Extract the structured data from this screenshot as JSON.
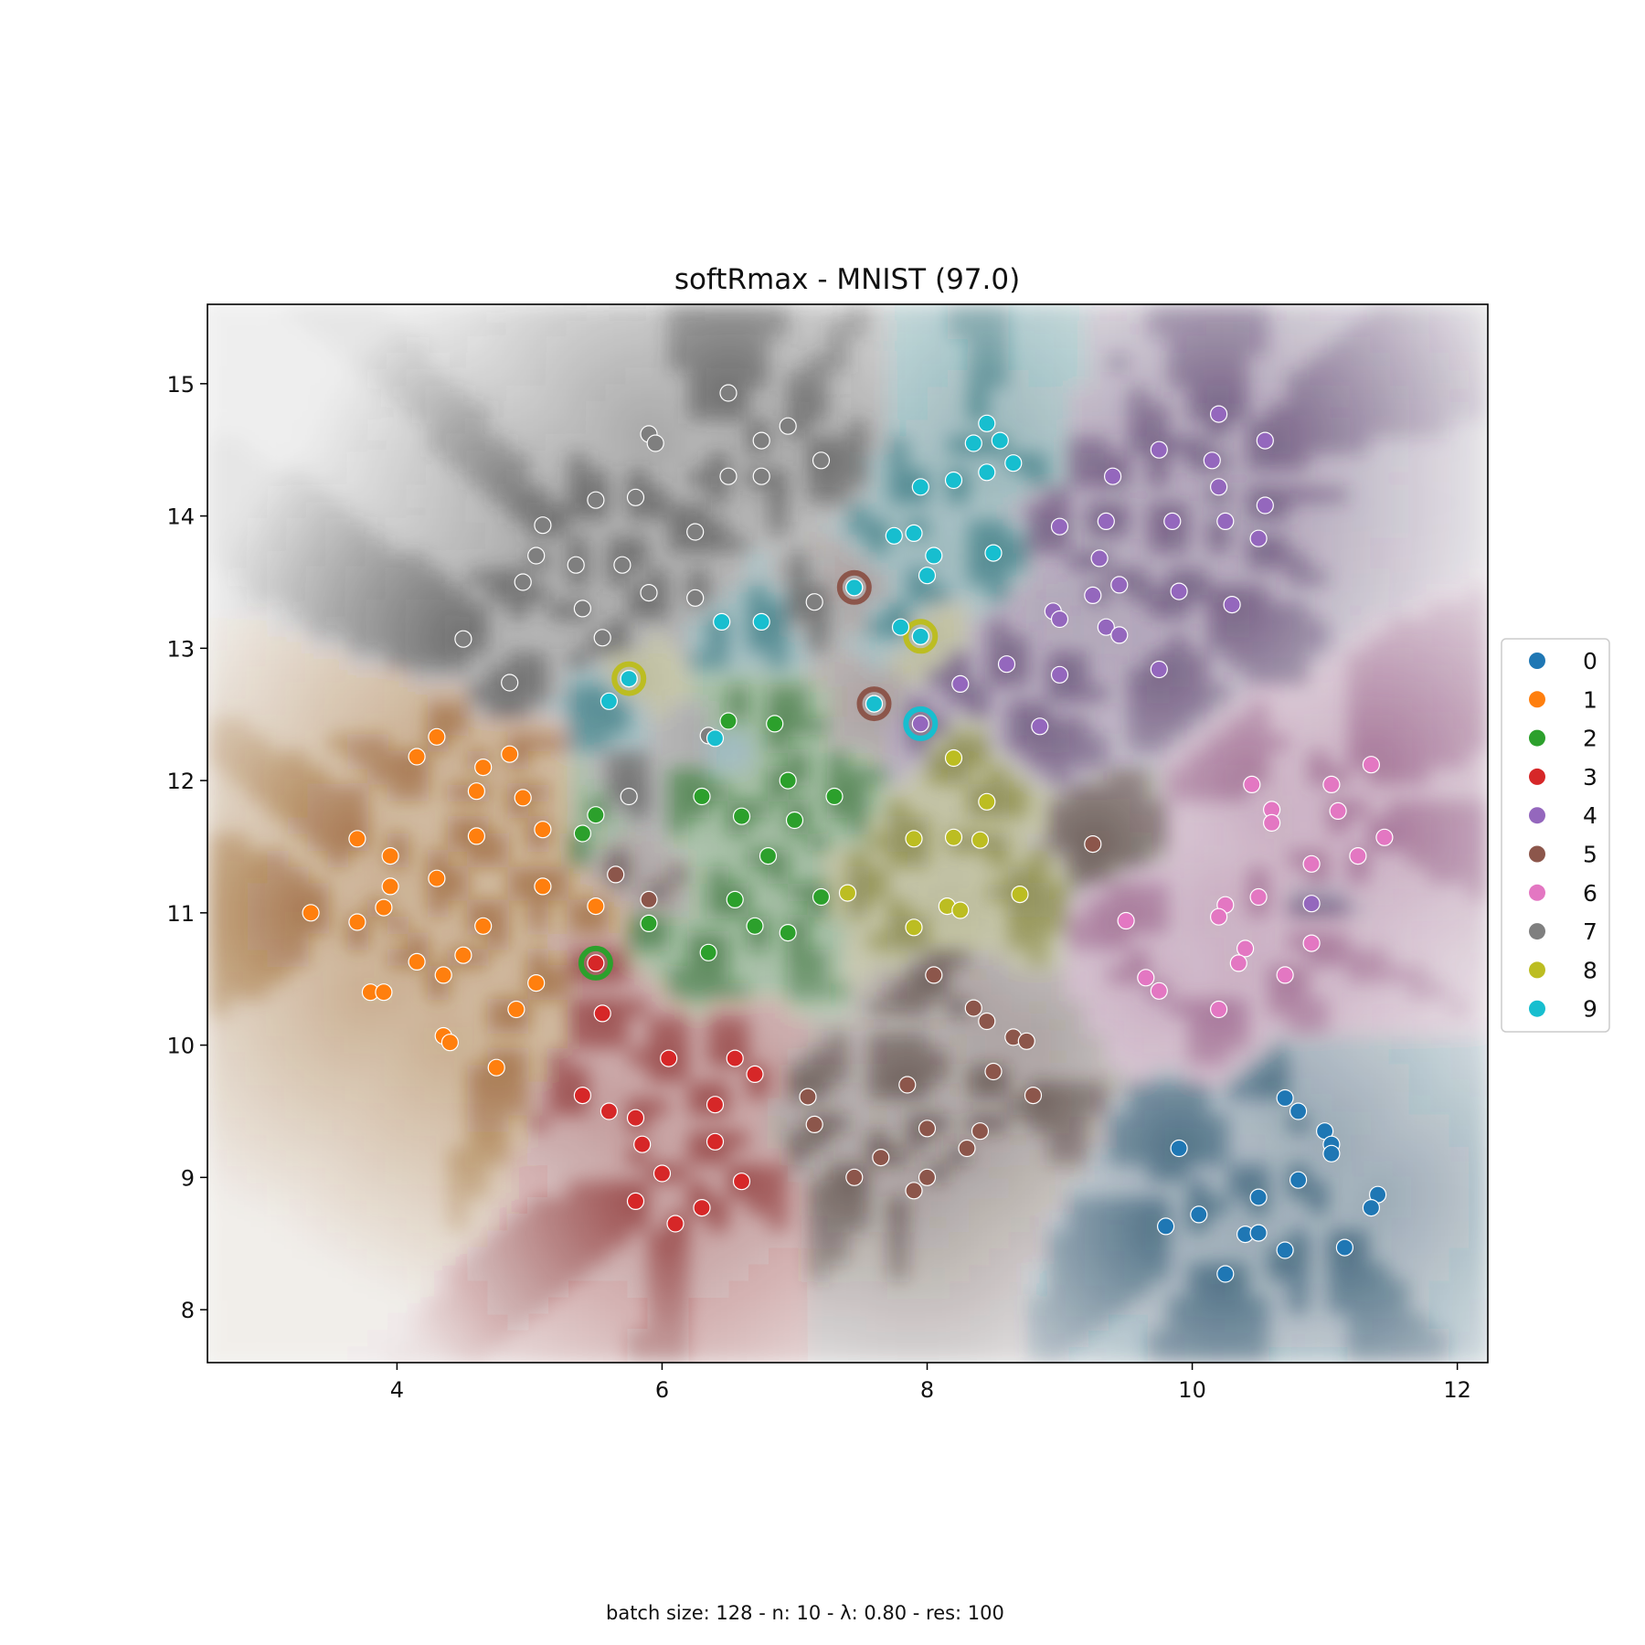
{
  "chart_data": {
    "type": "scatter",
    "title": "softRmax - MNIST (97.0)",
    "caption": "batch size: 128 - n: 10 - λ: 0.80 - res: 100",
    "xlim": [
      2.57,
      12.23
    ],
    "ylim": [
      7.6,
      15.6
    ],
    "xticks": [
      4,
      6,
      8,
      10,
      12
    ],
    "yticks": [
      8,
      9,
      10,
      11,
      12,
      13,
      14,
      15
    ],
    "grid": false,
    "legend_position": "right",
    "background": "class-probability heatmap tinted by predicted class",
    "classes": [
      {
        "label": "0",
        "color": "#1f77b4",
        "shade": "#15405c"
      },
      {
        "label": "1",
        "color": "#ff7f0e",
        "shade": "#8a4a0c"
      },
      {
        "label": "2",
        "color": "#2ca02c",
        "shade": "#1b5e1b"
      },
      {
        "label": "3",
        "color": "#d62728",
        "shade": "#7a1414"
      },
      {
        "label": "4",
        "color": "#9467bd",
        "shade": "#4a2e5e"
      },
      {
        "label": "5",
        "color": "#8c564b",
        "shade": "#3f2a25"
      },
      {
        "label": "6",
        "color": "#e377c2",
        "shade": "#8a4a78"
      },
      {
        "label": "7",
        "color": "#7f7f7f",
        "shade": "#3c3c3c"
      },
      {
        "label": "8",
        "color": "#bcbd22",
        "shade": "#6a6a18"
      },
      {
        "label": "9",
        "color": "#17becf",
        "shade": "#12606a"
      }
    ],
    "series": [
      {
        "name": "0",
        "points": [
          [
            10.7,
            9.6
          ],
          [
            10.8,
            9.5
          ],
          [
            11.0,
            9.35
          ],
          [
            11.05,
            9.25
          ],
          [
            11.05,
            9.18
          ],
          [
            9.9,
            9.22
          ],
          [
            10.5,
            8.85
          ],
          [
            10.8,
            8.98
          ],
          [
            11.4,
            8.87
          ],
          [
            11.35,
            8.77
          ],
          [
            9.8,
            8.63
          ],
          [
            10.05,
            8.72
          ],
          [
            10.4,
            8.57
          ],
          [
            10.5,
            8.58
          ],
          [
            10.7,
            8.45
          ],
          [
            11.15,
            8.47
          ],
          [
            10.25,
            8.27
          ]
        ]
      },
      {
        "name": "1",
        "points": [
          [
            4.15,
            12.18
          ],
          [
            4.3,
            12.33
          ],
          [
            4.65,
            12.1
          ],
          [
            4.85,
            12.2
          ],
          [
            4.6,
            11.92
          ],
          [
            4.95,
            11.87
          ],
          [
            3.7,
            11.56
          ],
          [
            3.95,
            11.43
          ],
          [
            4.6,
            11.58
          ],
          [
            5.1,
            11.63
          ],
          [
            4.3,
            11.26
          ],
          [
            3.95,
            11.2
          ],
          [
            5.1,
            11.2
          ],
          [
            3.35,
            11.0
          ],
          [
            3.9,
            11.04
          ],
          [
            3.7,
            10.93
          ],
          [
            4.65,
            10.9
          ],
          [
            5.5,
            11.05
          ],
          [
            4.15,
            10.63
          ],
          [
            4.5,
            10.68
          ],
          [
            4.35,
            10.53
          ],
          [
            5.05,
            10.47
          ],
          [
            3.8,
            10.4
          ],
          [
            3.9,
            10.4
          ],
          [
            4.9,
            10.27
          ],
          [
            4.35,
            10.07
          ],
          [
            4.4,
            10.02
          ],
          [
            4.75,
            9.83
          ]
        ]
      },
      {
        "name": "2",
        "points": [
          [
            6.5,
            12.45
          ],
          [
            6.85,
            12.43
          ],
          [
            6.95,
            12.0
          ],
          [
            6.3,
            11.88
          ],
          [
            7.3,
            11.88
          ],
          [
            5.5,
            11.74
          ],
          [
            6.6,
            11.73
          ],
          [
            7.0,
            11.7
          ],
          [
            5.4,
            11.6
          ],
          [
            6.8,
            11.43
          ],
          [
            6.55,
            11.1
          ],
          [
            6.7,
            10.9
          ],
          [
            6.95,
            10.85
          ],
          [
            7.2,
            11.12
          ],
          [
            5.9,
            10.92
          ],
          [
            6.35,
            10.7
          ]
        ]
      },
      {
        "name": "3",
        "points": [
          [
            5.5,
            10.62
          ],
          [
            5.55,
            10.24
          ],
          [
            6.05,
            9.9
          ],
          [
            6.55,
            9.9
          ],
          [
            6.7,
            9.78
          ],
          [
            5.4,
            9.62
          ],
          [
            5.6,
            9.5
          ],
          [
            5.8,
            9.45
          ],
          [
            6.4,
            9.55
          ],
          [
            5.85,
            9.25
          ],
          [
            6.4,
            9.27
          ],
          [
            6.0,
            9.03
          ],
          [
            6.6,
            8.97
          ],
          [
            5.8,
            8.82
          ],
          [
            6.3,
            8.77
          ],
          [
            6.1,
            8.65
          ]
        ]
      },
      {
        "name": "4",
        "points": [
          [
            10.2,
            14.77
          ],
          [
            10.55,
            14.57
          ],
          [
            9.75,
            14.5
          ],
          [
            10.15,
            14.42
          ],
          [
            9.4,
            14.3
          ],
          [
            10.2,
            14.22
          ],
          [
            10.55,
            14.08
          ],
          [
            9.35,
            13.96
          ],
          [
            9.85,
            13.96
          ],
          [
            10.25,
            13.96
          ],
          [
            9.0,
            13.92
          ],
          [
            10.5,
            13.83
          ],
          [
            9.3,
            13.68
          ],
          [
            9.45,
            13.48
          ],
          [
            9.9,
            13.43
          ],
          [
            9.25,
            13.4
          ],
          [
            10.3,
            13.33
          ],
          [
            8.95,
            13.28
          ],
          [
            9.0,
            13.22
          ],
          [
            9.35,
            13.16
          ],
          [
            9.45,
            13.1
          ],
          [
            8.6,
            12.88
          ],
          [
            9.0,
            12.8
          ],
          [
            9.75,
            12.84
          ],
          [
            8.25,
            12.73
          ],
          [
            7.95,
            12.43
          ],
          [
            8.85,
            12.41
          ],
          [
            10.9,
            11.07
          ]
        ]
      },
      {
        "name": "5",
        "points": [
          [
            7.45,
            13.46
          ],
          [
            7.6,
            12.58
          ],
          [
            9.25,
            11.52
          ],
          [
            5.65,
            11.29
          ],
          [
            5.9,
            11.1
          ],
          [
            8.05,
            10.53
          ],
          [
            8.35,
            10.28
          ],
          [
            8.45,
            10.18
          ],
          [
            8.65,
            10.06
          ],
          [
            8.75,
            10.03
          ],
          [
            8.5,
            9.8
          ],
          [
            7.1,
            9.61
          ],
          [
            7.85,
            9.7
          ],
          [
            8.8,
            9.62
          ],
          [
            7.15,
            9.4
          ],
          [
            8.0,
            9.37
          ],
          [
            8.4,
            9.35
          ],
          [
            8.3,
            9.22
          ],
          [
            7.65,
            9.15
          ],
          [
            7.45,
            9.0
          ],
          [
            8.0,
            9.0
          ],
          [
            7.9,
            8.9
          ]
        ]
      },
      {
        "name": "6",
        "points": [
          [
            11.35,
            12.12
          ],
          [
            10.45,
            11.97
          ],
          [
            11.05,
            11.97
          ],
          [
            10.6,
            11.78
          ],
          [
            11.1,
            11.77
          ],
          [
            10.6,
            11.68
          ],
          [
            11.45,
            11.57
          ],
          [
            11.25,
            11.43
          ],
          [
            10.9,
            11.37
          ],
          [
            10.5,
            11.12
          ],
          [
            10.25,
            11.06
          ],
          [
            10.2,
            10.97
          ],
          [
            9.5,
            10.94
          ],
          [
            10.4,
            10.73
          ],
          [
            10.35,
            10.62
          ],
          [
            10.9,
            10.77
          ],
          [
            9.65,
            10.51
          ],
          [
            9.75,
            10.41
          ],
          [
            10.7,
            10.53
          ],
          [
            10.2,
            10.27
          ]
        ]
      },
      {
        "name": "7",
        "points": [
          [
            6.5,
            14.93
          ],
          [
            5.9,
            14.62
          ],
          [
            5.95,
            14.55
          ],
          [
            6.95,
            14.68
          ],
          [
            6.75,
            14.57
          ],
          [
            7.2,
            14.42
          ],
          [
            6.5,
            14.3
          ],
          [
            6.75,
            14.3
          ],
          [
            5.5,
            14.12
          ],
          [
            5.8,
            14.14
          ],
          [
            5.1,
            13.93
          ],
          [
            6.25,
            13.88
          ],
          [
            5.05,
            13.7
          ],
          [
            4.95,
            13.5
          ],
          [
            5.35,
            13.63
          ],
          [
            5.7,
            13.63
          ],
          [
            5.9,
            13.42
          ],
          [
            6.25,
            13.38
          ],
          [
            7.15,
            13.35
          ],
          [
            5.4,
            13.3
          ],
          [
            5.55,
            13.08
          ],
          [
            4.5,
            13.07
          ],
          [
            4.85,
            12.74
          ],
          [
            5.75,
            11.88
          ],
          [
            6.35,
            12.34
          ]
        ]
      },
      {
        "name": "8",
        "points": [
          [
            5.75,
            12.77
          ],
          [
            7.95,
            13.09
          ],
          [
            8.2,
            12.17
          ],
          [
            8.45,
            11.84
          ],
          [
            7.9,
            11.56
          ],
          [
            8.2,
            11.57
          ],
          [
            8.4,
            11.55
          ],
          [
            7.4,
            11.15
          ],
          [
            8.15,
            11.05
          ],
          [
            8.25,
            11.02
          ],
          [
            7.9,
            10.89
          ],
          [
            8.7,
            11.14
          ]
        ]
      },
      {
        "name": "9",
        "points": [
          [
            8.45,
            14.7
          ],
          [
            8.55,
            14.57
          ],
          [
            8.35,
            14.55
          ],
          [
            8.65,
            14.4
          ],
          [
            8.45,
            14.33
          ],
          [
            8.2,
            14.27
          ],
          [
            7.95,
            14.22
          ],
          [
            7.75,
            13.85
          ],
          [
            7.9,
            13.87
          ],
          [
            8.05,
            13.7
          ],
          [
            8.5,
            13.72
          ],
          [
            8.0,
            13.55
          ],
          [
            7.45,
            13.46
          ],
          [
            6.45,
            13.2
          ],
          [
            6.75,
            13.2
          ],
          [
            7.8,
            13.16
          ],
          [
            7.95,
            13.09
          ],
          [
            5.75,
            12.77
          ],
          [
            5.6,
            12.6
          ],
          [
            7.6,
            12.58
          ],
          [
            6.4,
            12.32
          ]
        ]
      }
    ],
    "highlighted": [
      {
        "x": 7.45,
        "y": 13.46,
        "ring_class": "5",
        "point_class": "9"
      },
      {
        "x": 7.95,
        "y": 13.09,
        "ring_class": "8",
        "point_class": "9"
      },
      {
        "x": 5.75,
        "y": 12.77,
        "ring_class": "8",
        "point_class": "9"
      },
      {
        "x": 7.6,
        "y": 12.58,
        "ring_class": "5",
        "point_class": "9"
      },
      {
        "x": 7.95,
        "y": 12.43,
        "ring_class": "9",
        "point_class": "4"
      },
      {
        "x": 5.5,
        "y": 10.62,
        "ring_class": "2",
        "point_class": "3"
      }
    ]
  }
}
